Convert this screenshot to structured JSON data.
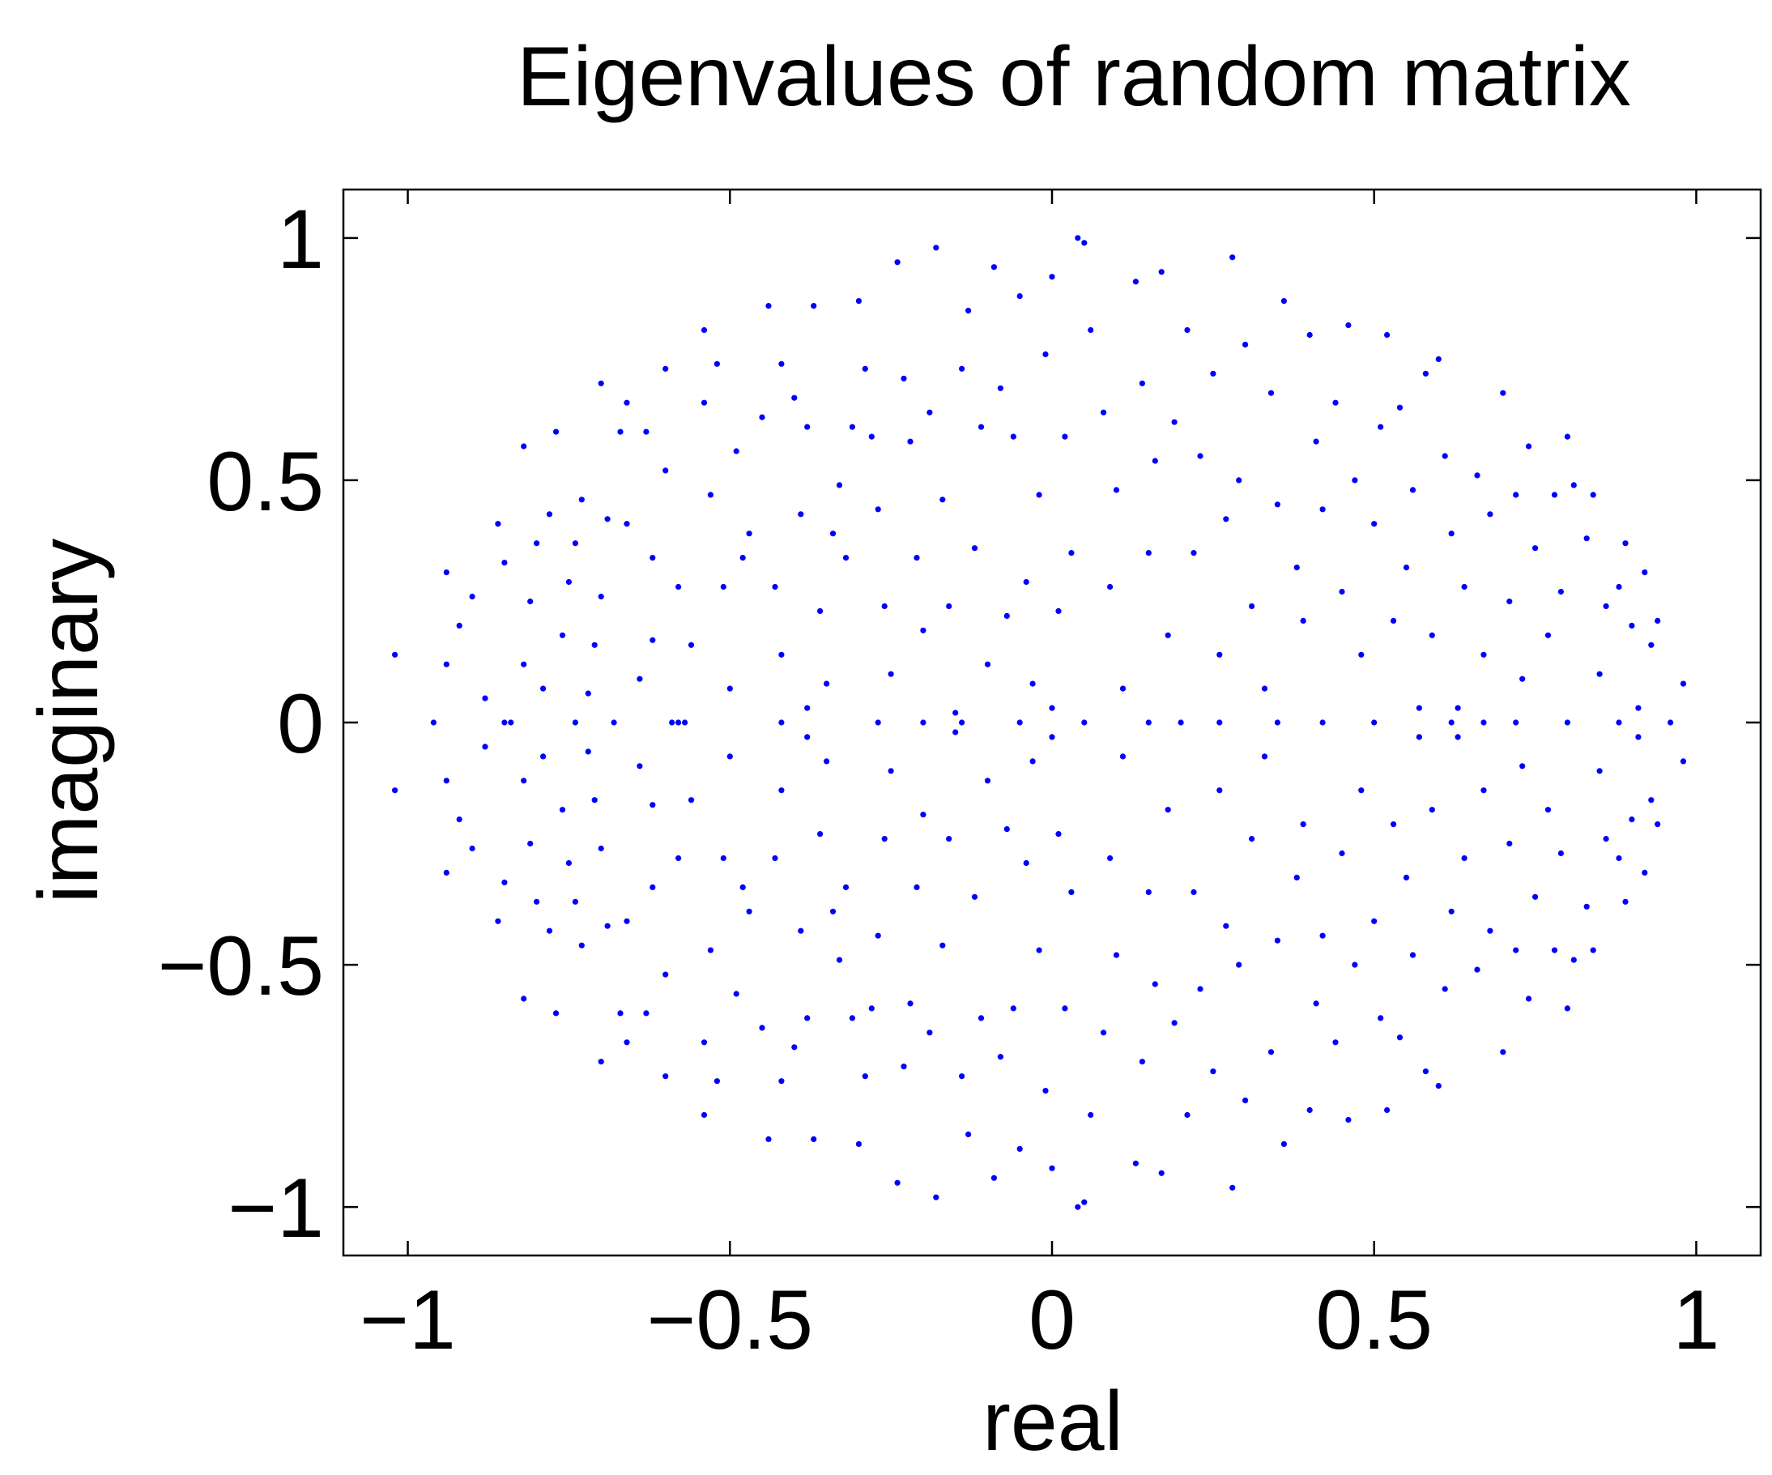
{
  "chart_data": {
    "type": "scatter",
    "title": "Eigenvalues of random matrix",
    "xlabel": "real",
    "ylabel": "imaginary",
    "xlim": [
      -1.1,
      1.1
    ],
    "ylim": [
      -1.1,
      1.1
    ],
    "xticks": [
      -1,
      -0.5,
      0,
      0.5,
      1
    ],
    "yticks": [
      -1,
      -0.5,
      0,
      0.5,
      1
    ],
    "xtick_labels": [
      "−1",
      "−0.5",
      "0",
      "0.5",
      "1"
    ],
    "ytick_labels": [
      "−1",
      "−0.5",
      "0",
      "0.5",
      "1"
    ],
    "grid": false,
    "legend": "none",
    "marker_color": "#0000ff",
    "series": [
      {
        "points": [
          [
            -1.02,
            0.14
          ],
          [
            -0.96,
            0.0
          ],
          [
            -0.94,
            0.31
          ],
          [
            -0.94,
            0.12
          ],
          [
            -0.92,
            0.2
          ],
          [
            -0.9,
            0.26
          ],
          [
            -0.88,
            0.05
          ],
          [
            -0.86,
            0.41
          ],
          [
            -0.85,
            0.33
          ],
          [
            -0.84,
            0.0
          ],
          [
            -0.82,
            0.57
          ],
          [
            -0.82,
            0.12
          ],
          [
            -0.81,
            0.25
          ],
          [
            -0.8,
            0.37
          ],
          [
            -0.79,
            0.07
          ],
          [
            -0.78,
            0.43
          ],
          [
            -0.77,
            0.6
          ],
          [
            -0.76,
            0.18
          ],
          [
            -0.75,
            0.29
          ],
          [
            -0.74,
            0.37
          ],
          [
            -0.73,
            0.46
          ],
          [
            -0.72,
            0.06
          ],
          [
            -0.71,
            0.16
          ],
          [
            -0.7,
            0.7
          ],
          [
            -0.7,
            0.26
          ],
          [
            -0.69,
            0.42
          ],
          [
            -0.68,
            0.0
          ],
          [
            -0.67,
            0.6
          ],
          [
            -0.66,
            0.66
          ],
          [
            -0.66,
            0.41
          ],
          [
            -0.64,
            0.09
          ],
          [
            -0.63,
            0.6
          ],
          [
            -0.62,
            0.34
          ],
          [
            -0.62,
            0.17
          ],
          [
            -0.6,
            0.73
          ],
          [
            -0.6,
            0.52
          ],
          [
            -0.58,
            0.28
          ],
          [
            -0.58,
            0.0
          ],
          [
            -0.56,
            0.16
          ],
          [
            -0.54,
            0.81
          ],
          [
            -0.54,
            0.66
          ],
          [
            -0.53,
            0.47
          ],
          [
            -0.52,
            0.74
          ],
          [
            -0.51,
            0.28
          ],
          [
            -0.5,
            0.07
          ],
          [
            -0.49,
            0.56
          ],
          [
            -0.48,
            0.34
          ],
          [
            -0.47,
            0.39
          ],
          [
            -0.45,
            0.63
          ],
          [
            -0.44,
            0.86
          ],
          [
            -0.43,
            0.28
          ],
          [
            -0.42,
            0.74
          ],
          [
            -0.42,
            0.14
          ],
          [
            -0.4,
            0.67
          ],
          [
            -0.39,
            0.43
          ],
          [
            -0.38,
            0.61
          ],
          [
            -0.37,
            0.86
          ],
          [
            -0.36,
            0.23
          ],
          [
            -0.35,
            0.08
          ],
          [
            -0.34,
            0.39
          ],
          [
            -0.33,
            0.49
          ],
          [
            -0.32,
            0.34
          ],
          [
            -0.31,
            0.61
          ],
          [
            -0.3,
            0.87
          ],
          [
            -0.29,
            0.73
          ],
          [
            -0.28,
            0.59
          ],
          [
            -0.27,
            0.44
          ],
          [
            -0.26,
            0.24
          ],
          [
            -0.25,
            0.1
          ],
          [
            -0.24,
            0.95
          ],
          [
            -0.23,
            0.71
          ],
          [
            -0.22,
            0.58
          ],
          [
            -0.21,
            0.34
          ],
          [
            -0.2,
            0.19
          ],
          [
            -0.19,
            0.64
          ],
          [
            -0.18,
            0.98
          ],
          [
            -0.17,
            0.46
          ],
          [
            -0.16,
            0.24
          ],
          [
            -0.15,
            0.02
          ],
          [
            -0.14,
            0.73
          ],
          [
            -0.13,
            0.85
          ],
          [
            -0.12,
            0.36
          ],
          [
            -0.11,
            0.61
          ],
          [
            -0.1,
            0.12
          ],
          [
            -0.09,
            0.94
          ],
          [
            -0.08,
            0.69
          ],
          [
            -0.07,
            0.22
          ],
          [
            -0.06,
            0.59
          ],
          [
            -0.05,
            0.88
          ],
          [
            -0.04,
            0.29
          ],
          [
            -0.03,
            0.08
          ],
          [
            -0.02,
            0.47
          ],
          [
            -0.01,
            0.76
          ],
          [
            0.0,
            0.92
          ],
          [
            0.01,
            0.23
          ],
          [
            0.02,
            0.59
          ],
          [
            0.03,
            0.35
          ],
          [
            0.04,
            1.0
          ],
          [
            0.05,
            0.99
          ],
          [
            0.06,
            0.81
          ],
          [
            0.08,
            0.64
          ],
          [
            0.09,
            0.28
          ],
          [
            0.1,
            0.48
          ],
          [
            0.11,
            0.07
          ],
          [
            0.13,
            0.91
          ],
          [
            0.14,
            0.7
          ],
          [
            0.15,
            0.35
          ],
          [
            0.16,
            0.54
          ],
          [
            0.17,
            0.93
          ],
          [
            0.18,
            0.18
          ],
          [
            0.19,
            0.62
          ],
          [
            0.21,
            0.81
          ],
          [
            0.22,
            0.35
          ],
          [
            0.23,
            0.55
          ],
          [
            0.25,
            0.72
          ],
          [
            0.26,
            0.14
          ],
          [
            0.27,
            0.42
          ],
          [
            0.28,
            0.96
          ],
          [
            0.29,
            0.5
          ],
          [
            0.3,
            0.78
          ],
          [
            0.31,
            0.24
          ],
          [
            0.33,
            0.07
          ],
          [
            0.34,
            0.68
          ],
          [
            0.35,
            0.45
          ],
          [
            0.36,
            0.87
          ],
          [
            0.38,
            0.32
          ],
          [
            0.39,
            0.21
          ],
          [
            0.4,
            0.8
          ],
          [
            0.41,
            0.58
          ],
          [
            0.42,
            0.44
          ],
          [
            0.44,
            0.66
          ],
          [
            0.45,
            0.27
          ],
          [
            0.46,
            0.82
          ],
          [
            0.47,
            0.5
          ],
          [
            0.48,
            0.14
          ],
          [
            0.5,
            0.41
          ],
          [
            0.51,
            0.61
          ],
          [
            0.52,
            0.8
          ],
          [
            0.53,
            0.21
          ],
          [
            0.54,
            0.65
          ],
          [
            0.55,
            0.32
          ],
          [
            0.56,
            0.48
          ],
          [
            0.57,
            0.03
          ],
          [
            0.58,
            0.72
          ],
          [
            0.59,
            0.18
          ],
          [
            0.6,
            0.75
          ],
          [
            0.61,
            0.55
          ],
          [
            0.62,
            0.39
          ],
          [
            0.63,
            0.03
          ],
          [
            0.64,
            0.28
          ],
          [
            0.66,
            0.51
          ],
          [
            0.67,
            0.14
          ],
          [
            0.68,
            0.43
          ],
          [
            0.7,
            0.68
          ],
          [
            0.71,
            0.25
          ],
          [
            0.72,
            0.47
          ],
          [
            0.73,
            0.09
          ],
          [
            0.74,
            0.57
          ],
          [
            0.75,
            0.36
          ],
          [
            0.77,
            0.18
          ],
          [
            0.78,
            0.47
          ],
          [
            0.79,
            0.27
          ],
          [
            0.8,
            0.59
          ],
          [
            0.81,
            0.49
          ],
          [
            0.83,
            0.38
          ],
          [
            0.84,
            0.47
          ],
          [
            0.85,
            0.1
          ],
          [
            0.86,
            0.24
          ],
          [
            0.88,
            0.28
          ],
          [
            0.89,
            0.37
          ],
          [
            0.9,
            0.2
          ],
          [
            0.91,
            0.03
          ],
          [
            0.92,
            0.31
          ],
          [
            0.93,
            0.16
          ],
          [
            0.94,
            0.21
          ],
          [
            0.98,
            0.08
          ],
          [
            0.96,
            0.0
          ],
          [
            -0.85,
            0.0
          ],
          [
            -0.57,
            0.0
          ],
          [
            -0.42,
            0.0
          ],
          [
            -0.38,
            0.03
          ],
          [
            -0.2,
            0.0
          ],
          [
            -0.14,
            0.0
          ],
          [
            0.0,
            0.03
          ],
          [
            0.15,
            0.0
          ],
          [
            0.26,
            0.0
          ],
          [
            0.42,
            0.0
          ],
          [
            0.5,
            0.0
          ],
          [
            0.62,
            0.0
          ],
          [
            0.72,
            0.0
          ],
          [
            0.8,
            0.0
          ],
          [
            0.88,
            0.0
          ],
          [
            -0.74,
            0.0
          ],
          [
            -0.59,
            0.0
          ],
          [
            -0.05,
            0.0
          ],
          [
            0.05,
            0.0
          ],
          [
            0.35,
            0.0
          ],
          [
            0.67,
            0.0
          ],
          [
            -0.27,
            0.0
          ],
          [
            0.2,
            0.0
          ]
        ]
      }
    ]
  }
}
